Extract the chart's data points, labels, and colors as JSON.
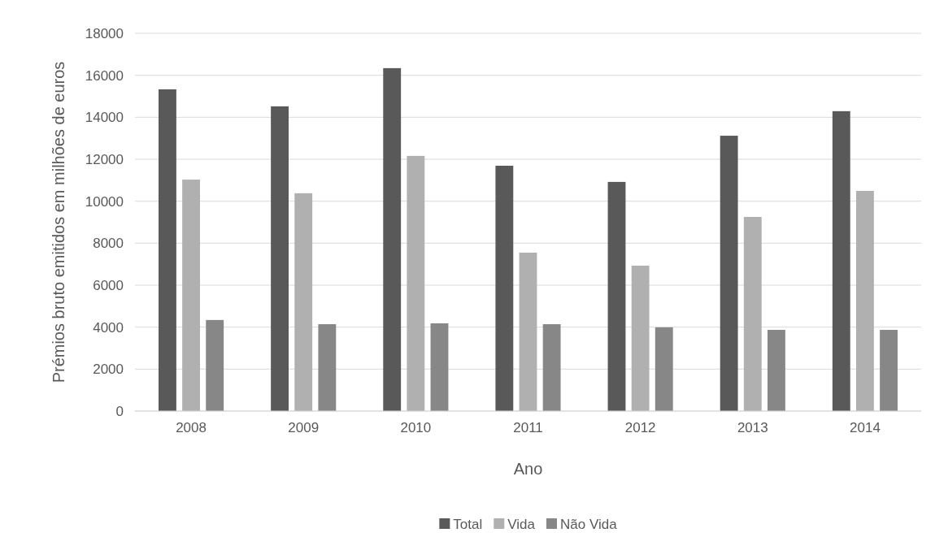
{
  "chart_data": {
    "type": "bar",
    "xlabel": "Ano",
    "ylabel": "Prémios bruto emitidos em milhões de euros",
    "categories": [
      "2008",
      "2009",
      "2010",
      "2011",
      "2012",
      "2013",
      "2014"
    ],
    "series": [
      {
        "name": "Total",
        "color": "#595959",
        "values": [
          15330,
          14520,
          16340,
          11690,
          10920,
          13120,
          14290
        ]
      },
      {
        "name": "Vida",
        "color": "#b0b0b0",
        "values": [
          11030,
          10380,
          12160,
          7550,
          6930,
          9250,
          10490
        ]
      },
      {
        "name": "Não Vida",
        "color": "#878787",
        "values": [
          4340,
          4140,
          4180,
          4140,
          3990,
          3870,
          3870
        ]
      }
    ],
    "ylim": [
      0,
      18000
    ],
    "yticks": [
      0,
      2000,
      4000,
      6000,
      8000,
      10000,
      12000,
      14000,
      16000,
      18000
    ],
    "grid": "y",
    "legend": "bottom"
  }
}
